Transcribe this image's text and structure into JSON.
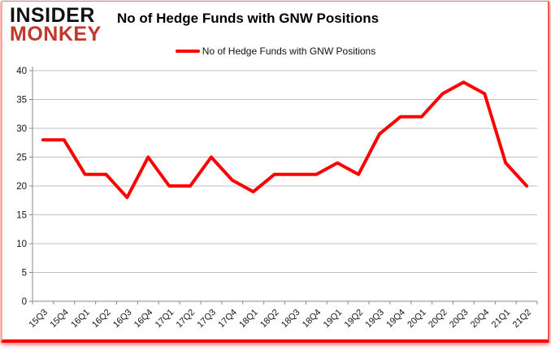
{
  "brand": {
    "line1": "INSIDER",
    "line2": "MONKEY",
    "line1_color": "#111111",
    "line2_color": "#c0392b"
  },
  "header": {
    "title": "No of Hedge Funds with GNW Positions"
  },
  "legend": {
    "label": "No of Hedge Funds with GNW Positions",
    "line_color": "#fe0000"
  },
  "chart_data": {
    "type": "line",
    "title": "No of Hedge Funds with GNW Positions",
    "categories": [
      "15Q3",
      "15Q4",
      "16Q1",
      "16Q2",
      "16Q3",
      "16Q4",
      "17Q1",
      "17Q2",
      "17Q3",
      "17Q4",
      "18Q1",
      "18Q2",
      "18Q3",
      "18Q4",
      "19Q1",
      "19Q2",
      "19Q3",
      "19Q4",
      "20Q1",
      "20Q2",
      "20Q3",
      "20Q4",
      "21Q1",
      "21Q2"
    ],
    "series": [
      {
        "name": "No of Hedge Funds with GNW Positions",
        "color": "#fe0000",
        "values": [
          28,
          28,
          22,
          22,
          18,
          25,
          20,
          20,
          25,
          21,
          19,
          22,
          22,
          22,
          24,
          22,
          29,
          32,
          32,
          36,
          38,
          36,
          24,
          20
        ]
      }
    ],
    "xlabel": "",
    "ylabel": "",
    "ylim": [
      0,
      40
    ],
    "y_ticks": [
      0,
      5,
      10,
      15,
      20,
      25,
      30,
      35,
      40
    ],
    "grid": true,
    "legend_position": "top",
    "gridline_color": "#bfbfbf",
    "axis_color": "#8a8a8a",
    "tick_label_color": "#141414"
  }
}
